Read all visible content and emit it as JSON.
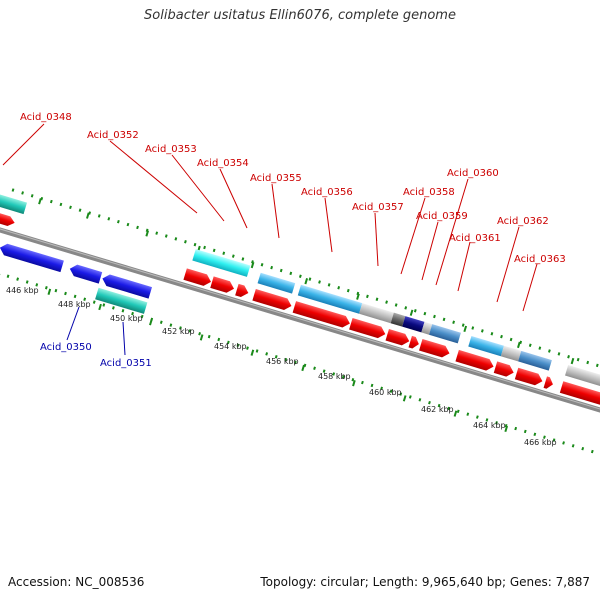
{
  "title": "Solibacter usitatus Ellin6076, complete genome",
  "accession": "Accession: NC_008536",
  "summary": "Topology: circular; Length: 9,965,640 bp; Genes: 7,887",
  "colors": {
    "forward_cds": "#e8000b",
    "reverse_cds": "#1a1ae6",
    "rna": "#00d2c6",
    "backbone": "#888888",
    "gc_ticks": "#1a8a1a",
    "light_blue": "#3ab3e8",
    "grey": "#bbbbbb",
    "navy": "#0a0a80",
    "steel": "#4a8ec8"
  },
  "kbp_labels": [
    "446 kbp",
    "448 kbp",
    "450 kbp",
    "452 kbp",
    "454 kbp",
    "456 kbp",
    "458 kbp",
    "460 kbp",
    "462 kbp",
    "464 kbp",
    "466 kbp"
  ],
  "upper_labels": [
    "Acid_0348",
    "Acid_0352",
    "Acid_0353",
    "Acid_0354",
    "Acid_0355",
    "Acid_0356",
    "Acid_0357",
    "Acid_0358",
    "Acid_0359",
    "Acid_0360",
    "Acid_0361",
    "Acid_0362",
    "Acid_0363"
  ],
  "lower_labels": [
    "Acid_0350",
    "Acid_0351"
  ]
}
